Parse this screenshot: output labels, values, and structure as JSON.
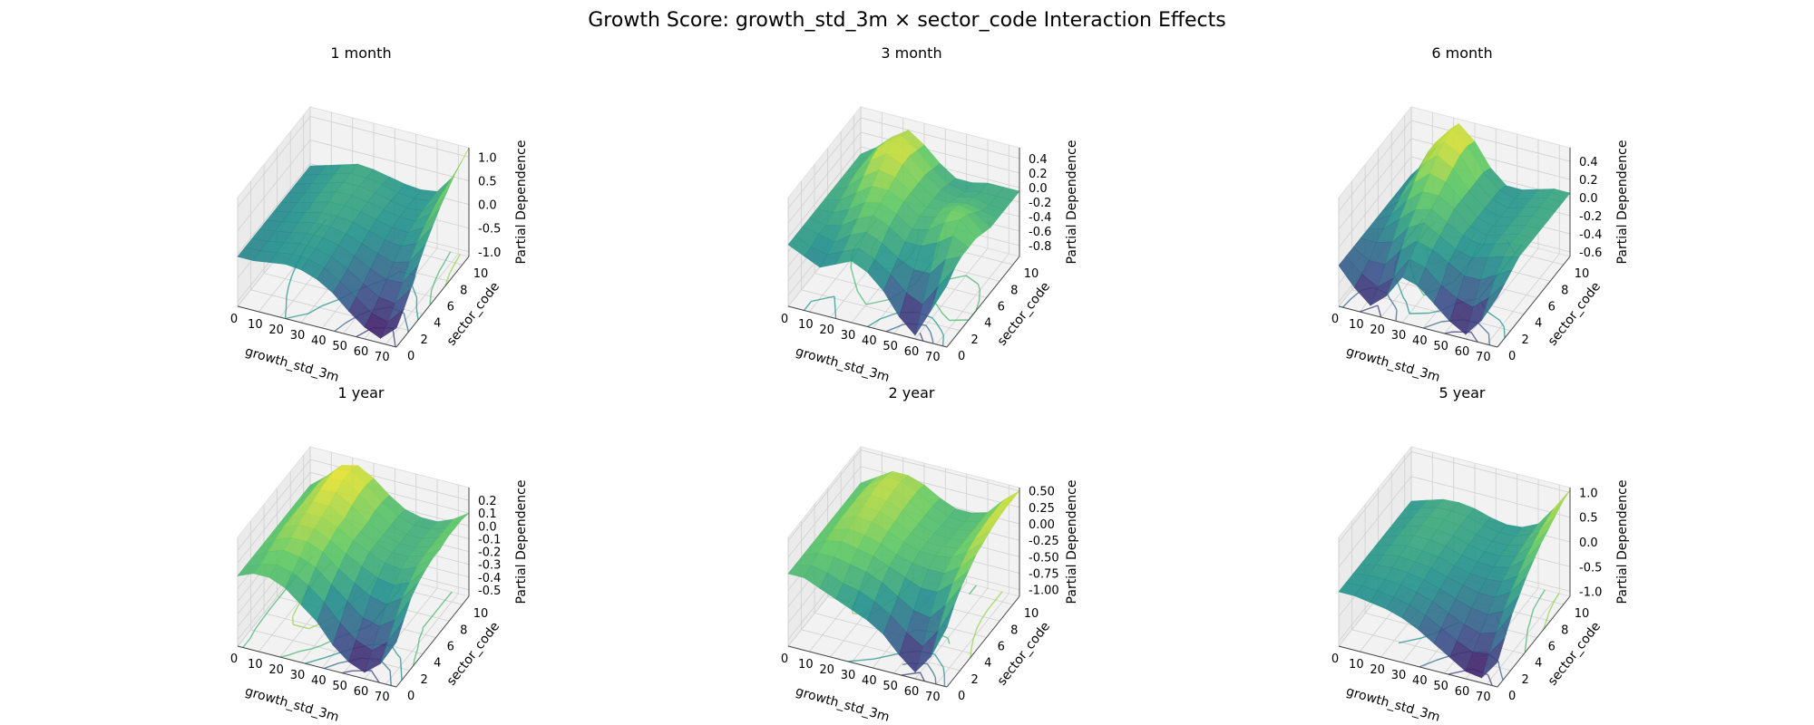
{
  "figure": {
    "title": "Growth Score: growth_std_3m × sector_code Interaction Effects"
  },
  "colors": {
    "colormap": "viridis",
    "pane": "#f2f2f2",
    "grid": "#d0d0d0",
    "text": "#000000"
  },
  "chart_data": [
    {
      "type": "surface3d",
      "title": "1 month",
      "xlabel": "growth_std_3m",
      "ylabel": "sector_code",
      "zlabel": "Partial Dependence",
      "xlim": [
        0,
        75
      ],
      "ylim": [
        0,
        11
      ],
      "zlim": [
        -1.1,
        1.2
      ],
      "xticks": [
        "0",
        "10",
        "20",
        "30",
        "40",
        "50",
        "60",
        "70"
      ],
      "yticks": [
        "0",
        "2",
        "4",
        "6",
        "8",
        "10"
      ],
      "zticks": [
        "-1.0",
        "-0.5",
        "0.0",
        "0.5",
        "1.0"
      ],
      "x": [
        0,
        7.5,
        15,
        22.5,
        30,
        37.5,
        45,
        52.5,
        60,
        67.5,
        75
      ],
      "y": [
        0,
        1.1,
        2.2,
        3.3,
        4.4,
        5.5,
        6.6,
        7.7,
        8.8,
        9.9,
        11
      ],
      "z": [
        [
          -0.05,
          -0.05,
          0.0,
          0.05,
          0.02,
          -0.1,
          -0.3,
          -0.6,
          -0.85,
          -1.0,
          -0.7
        ],
        [
          -0.05,
          -0.03,
          0.02,
          0.07,
          0.05,
          -0.05,
          -0.25,
          -0.5,
          -0.75,
          -0.85,
          -0.5
        ],
        [
          -0.05,
          -0.02,
          0.04,
          0.1,
          0.08,
          0.0,
          -0.18,
          -0.4,
          -0.6,
          -0.65,
          -0.25
        ],
        [
          -0.05,
          0.0,
          0.06,
          0.13,
          0.12,
          0.05,
          -0.1,
          -0.28,
          -0.42,
          -0.4,
          0.05
        ],
        [
          -0.05,
          0.01,
          0.08,
          0.16,
          0.16,
          0.1,
          -0.02,
          -0.15,
          -0.25,
          -0.15,
          0.3
        ],
        [
          -0.05,
          0.02,
          0.1,
          0.19,
          0.2,
          0.15,
          0.05,
          -0.05,
          -0.1,
          0.05,
          0.5
        ],
        [
          -0.05,
          0.03,
          0.12,
          0.22,
          0.23,
          0.18,
          0.1,
          0.02,
          0.0,
          0.2,
          0.7
        ],
        [
          -0.05,
          0.04,
          0.14,
          0.24,
          0.25,
          0.2,
          0.12,
          0.05,
          0.05,
          0.3,
          0.85
        ],
        [
          -0.05,
          0.05,
          0.15,
          0.25,
          0.25,
          0.2,
          0.12,
          0.05,
          0.08,
          0.4,
          1.0
        ],
        [
          -0.05,
          0.05,
          0.15,
          0.25,
          0.24,
          0.18,
          0.1,
          0.05,
          0.1,
          0.45,
          1.1
        ],
        [
          -0.05,
          0.05,
          0.15,
          0.25,
          0.22,
          0.15,
          0.08,
          0.05,
          0.1,
          0.5,
          1.2
        ]
      ]
    },
    {
      "type": "surface3d",
      "title": "3 month",
      "xlabel": "growth_std_3m",
      "ylabel": "sector_code",
      "zlabel": "Partial Dependence",
      "xlim": [
        0,
        75
      ],
      "ylim": [
        0,
        11
      ],
      "zlim": [
        -0.95,
        0.55
      ],
      "xticks": [
        "0",
        "10",
        "20",
        "30",
        "40",
        "50",
        "60",
        "70"
      ],
      "yticks": [
        "0",
        "2",
        "4",
        "6",
        "8",
        "10"
      ],
      "zticks": [
        "-0.8",
        "-0.6",
        "-0.4",
        "-0.2",
        "0.0",
        "0.2",
        "0.4"
      ],
      "x": [
        0,
        7.5,
        15,
        22.5,
        30,
        37.5,
        45,
        52.5,
        60,
        67.5,
        75
      ],
      "y": [
        0,
        1.1,
        2.2,
        3.3,
        4.4,
        5.5,
        6.6,
        7.7,
        8.8,
        9.9,
        11
      ],
      "z": [
        [
          -0.1,
          -0.2,
          -0.3,
          -0.2,
          -0.1,
          -0.2,
          -0.4,
          -0.7,
          -0.9,
          -0.5,
          -0.1
        ],
        [
          -0.1,
          -0.2,
          -0.25,
          -0.15,
          -0.05,
          -0.15,
          -0.3,
          -0.5,
          -0.6,
          -0.3,
          0.0
        ],
        [
          -0.1,
          -0.15,
          -0.2,
          -0.05,
          0.05,
          -0.05,
          -0.2,
          -0.3,
          -0.3,
          -0.05,
          0.05
        ],
        [
          -0.1,
          -0.15,
          -0.1,
          0.05,
          0.15,
          0.05,
          -0.1,
          -0.1,
          0.0,
          0.15,
          0.05
        ],
        [
          -0.1,
          -0.1,
          0.0,
          0.15,
          0.2,
          0.1,
          -0.05,
          0.0,
          0.15,
          0.25,
          0.05
        ],
        [
          -0.1,
          -0.05,
          0.1,
          0.25,
          0.25,
          0.15,
          0.0,
          0.05,
          0.2,
          0.2,
          0.0
        ],
        [
          -0.1,
          0.0,
          0.2,
          0.35,
          0.3,
          0.15,
          0.0,
          0.05,
          0.15,
          0.1,
          -0.05
        ],
        [
          -0.1,
          0.05,
          0.3,
          0.45,
          0.35,
          0.15,
          0.0,
          0.0,
          0.05,
          0.0,
          -0.05
        ],
        [
          -0.1,
          0.05,
          0.35,
          0.5,
          0.35,
          0.15,
          0.0,
          -0.05,
          0.0,
          -0.05,
          -0.05
        ],
        [
          -0.1,
          0.05,
          0.3,
          0.45,
          0.3,
          0.1,
          -0.05,
          -0.1,
          -0.05,
          -0.05,
          -0.05
        ],
        [
          -0.1,
          0.05,
          0.25,
          0.4,
          0.25,
          0.05,
          -0.1,
          -0.1,
          -0.05,
          -0.05,
          -0.05
        ]
      ]
    },
    {
      "type": "surface3d",
      "title": "6 month",
      "xlabel": "growth_std_3m",
      "ylabel": "sector_code",
      "zlabel": "Partial Dependence",
      "xlim": [
        0,
        75
      ],
      "ylim": [
        0,
        11
      ],
      "zlim": [
        -0.65,
        0.55
      ],
      "xticks": [
        "0",
        "10",
        "20",
        "30",
        "40",
        "50",
        "60",
        "70"
      ],
      "yticks": [
        "0",
        "2",
        "4",
        "6",
        "8",
        "10"
      ],
      "zticks": [
        "-0.6",
        "-0.4",
        "-0.2",
        "0.0",
        "0.2",
        "0.4"
      ],
      "x": [
        0,
        7.5,
        15,
        22.5,
        30,
        37.5,
        45,
        52.5,
        60,
        67.5,
        75
      ],
      "y": [
        0,
        1.1,
        2.2,
        3.3,
        4.4,
        5.5,
        6.6,
        7.7,
        8.8,
        9.9,
        11
      ],
      "z": [
        [
          -0.2,
          -0.4,
          -0.55,
          -0.4,
          -0.15,
          -0.2,
          -0.35,
          -0.5,
          -0.6,
          -0.4,
          -0.1
        ],
        [
          -0.2,
          -0.35,
          -0.45,
          -0.3,
          -0.05,
          -0.1,
          -0.25,
          -0.35,
          -0.4,
          -0.25,
          -0.05
        ],
        [
          -0.2,
          -0.3,
          -0.3,
          -0.1,
          0.05,
          0.0,
          -0.1,
          -0.2,
          -0.2,
          -0.1,
          0.0
        ],
        [
          -0.2,
          -0.2,
          -0.15,
          0.05,
          0.15,
          0.05,
          -0.05,
          -0.1,
          -0.05,
          0.0,
          0.05
        ],
        [
          -0.2,
          -0.15,
          0.0,
          0.15,
          0.2,
          0.1,
          0.0,
          -0.05,
          0.0,
          0.05,
          0.05
        ],
        [
          -0.2,
          -0.1,
          0.1,
          0.25,
          0.25,
          0.15,
          0.0,
          -0.05,
          0.0,
          0.05,
          0.05
        ],
        [
          -0.2,
          -0.05,
          0.2,
          0.35,
          0.3,
          0.15,
          0.0,
          -0.05,
          0.0,
          0.05,
          0.05
        ],
        [
          -0.2,
          0.0,
          0.3,
          0.45,
          0.35,
          0.15,
          0.0,
          -0.05,
          0.0,
          0.05,
          0.05
        ],
        [
          -0.2,
          0.0,
          0.35,
          0.5,
          0.4,
          0.15,
          0.0,
          -0.05,
          0.0,
          0.05,
          0.05
        ],
        [
          -0.2,
          0.0,
          0.35,
          0.55,
          0.4,
          0.15,
          0.0,
          -0.05,
          0.0,
          0.05,
          0.05
        ],
        [
          -0.2,
          0.0,
          0.3,
          0.5,
          0.35,
          0.1,
          -0.05,
          -0.05,
          0.0,
          0.05,
          0.05
        ]
      ]
    },
    {
      "type": "surface3d",
      "title": "1 year",
      "xlabel": "growth_std_3m",
      "ylabel": "sector_code",
      "zlabel": "Partial Dependence",
      "xlim": [
        0,
        75
      ],
      "ylim": [
        0,
        11
      ],
      "zlim": [
        -0.55,
        0.3
      ],
      "xticks": [
        "0",
        "10",
        "20",
        "30",
        "40",
        "50",
        "60",
        "70"
      ],
      "yticks": [
        "0",
        "2",
        "4",
        "6",
        "8",
        "10"
      ],
      "zticks": [
        "-0.5",
        "-0.4",
        "-0.3",
        "-0.2",
        "-0.1",
        "0.0",
        "0.1",
        "0.2"
      ],
      "x": [
        0,
        7.5,
        15,
        22.5,
        30,
        37.5,
        45,
        52.5,
        60,
        67.5,
        75
      ],
      "y": [
        0,
        1.1,
        2.2,
        3.3,
        4.4,
        5.5,
        6.6,
        7.7,
        8.8,
        9.9,
        11
      ],
      "z": [
        [
          0.0,
          0.05,
          0.05,
          0.0,
          -0.1,
          -0.2,
          -0.35,
          -0.45,
          -0.5,
          -0.4,
          -0.2
        ],
        [
          0.0,
          0.05,
          0.08,
          0.05,
          -0.02,
          -0.12,
          -0.25,
          -0.35,
          -0.4,
          -0.3,
          -0.1
        ],
        [
          0.0,
          0.08,
          0.12,
          0.1,
          0.05,
          -0.05,
          -0.15,
          -0.25,
          -0.28,
          -0.2,
          0.0
        ],
        [
          0.0,
          0.1,
          0.15,
          0.15,
          0.1,
          0.0,
          -0.08,
          -0.15,
          -0.18,
          -0.1,
          0.05
        ],
        [
          0.0,
          0.12,
          0.18,
          0.18,
          0.12,
          0.05,
          -0.02,
          -0.08,
          -0.1,
          -0.05,
          0.08
        ],
        [
          0.0,
          0.12,
          0.2,
          0.2,
          0.15,
          0.08,
          0.02,
          -0.03,
          -0.05,
          0.0,
          0.1
        ],
        [
          0.0,
          0.12,
          0.22,
          0.22,
          0.15,
          0.08,
          0.02,
          -0.02,
          -0.02,
          0.02,
          0.1
        ],
        [
          0.0,
          0.12,
          0.24,
          0.25,
          0.18,
          0.08,
          0.02,
          -0.02,
          -0.02,
          0.02,
          0.12
        ],
        [
          0.0,
          0.12,
          0.25,
          0.28,
          0.2,
          0.1,
          0.02,
          -0.02,
          -0.02,
          0.02,
          0.12
        ],
        [
          0.0,
          0.12,
          0.25,
          0.28,
          0.2,
          0.1,
          0.02,
          -0.02,
          -0.02,
          0.02,
          0.12
        ],
        [
          0.0,
          0.1,
          0.22,
          0.25,
          0.18,
          0.08,
          0.0,
          -0.03,
          -0.03,
          0.02,
          0.1
        ]
      ]
    },
    {
      "type": "surface3d",
      "title": "2 year",
      "xlabel": "growth_std_3m",
      "ylabel": "sector_code",
      "zlabel": "Partial Dependence",
      "xlim": [
        0,
        75
      ],
      "ylim": [
        0,
        11
      ],
      "zlim": [
        -1.1,
        0.55
      ],
      "xticks": [
        "0",
        "10",
        "20",
        "30",
        "40",
        "50",
        "60",
        "70"
      ],
      "yticks": [
        "0",
        "2",
        "4",
        "6",
        "8",
        "10"
      ],
      "zticks": [
        "-1.00",
        "-0.75",
        "-0.50",
        "-0.25",
        "0.00",
        "0.25",
        "0.50"
      ],
      "x": [
        0,
        7.5,
        15,
        22.5,
        30,
        37.5,
        45,
        52.5,
        60,
        67.5,
        75
      ],
      "y": [
        0,
        1.1,
        2.2,
        3.3,
        4.4,
        5.5,
        6.6,
        7.7,
        8.8,
        9.9,
        11
      ],
      "z": [
        [
          0.0,
          0.0,
          -0.1,
          -0.2,
          -0.3,
          -0.4,
          -0.55,
          -0.8,
          -1.0,
          -0.7,
          -0.2
        ],
        [
          0.0,
          0.05,
          0.0,
          -0.1,
          -0.15,
          -0.25,
          -0.4,
          -0.6,
          -0.75,
          -0.45,
          0.0
        ],
        [
          0.0,
          0.1,
          0.1,
          0.05,
          0.0,
          -0.1,
          -0.25,
          -0.4,
          -0.45,
          -0.2,
          0.15
        ],
        [
          0.0,
          0.15,
          0.2,
          0.15,
          0.1,
          0.0,
          -0.1,
          -0.2,
          -0.2,
          0.0,
          0.25
        ],
        [
          0.0,
          0.18,
          0.25,
          0.22,
          0.15,
          0.05,
          -0.02,
          -0.05,
          -0.05,
          0.1,
          0.35
        ],
        [
          0.0,
          0.2,
          0.3,
          0.28,
          0.2,
          0.1,
          0.02,
          0.02,
          0.05,
          0.2,
          0.4
        ],
        [
          0.0,
          0.2,
          0.32,
          0.3,
          0.22,
          0.1,
          0.02,
          0.02,
          0.05,
          0.25,
          0.45
        ],
        [
          0.0,
          0.2,
          0.35,
          0.33,
          0.24,
          0.1,
          0.02,
          0.0,
          0.05,
          0.28,
          0.48
        ],
        [
          0.0,
          0.2,
          0.38,
          0.35,
          0.25,
          0.1,
          0.0,
          0.0,
          0.05,
          0.3,
          0.5
        ],
        [
          0.0,
          0.18,
          0.35,
          0.35,
          0.25,
          0.1,
          0.0,
          -0.02,
          0.05,
          0.3,
          0.5
        ],
        [
          0.0,
          0.15,
          0.3,
          0.3,
          0.22,
          0.08,
          -0.02,
          -0.02,
          0.05,
          0.3,
          0.5
        ]
      ]
    },
    {
      "type": "surface3d",
      "title": "5 year",
      "xlabel": "growth_std_3m",
      "ylabel": "sector_code",
      "zlabel": "Partial Dependence",
      "xlim": [
        0,
        75
      ],
      "ylim": [
        0,
        11
      ],
      "zlim": [
        -1.1,
        1.1
      ],
      "xticks": [
        "0",
        "10",
        "20",
        "30",
        "40",
        "50",
        "60",
        "70"
      ],
      "yticks": [
        "0",
        "2",
        "4",
        "6",
        "8",
        "10"
      ],
      "zticks": [
        "-1.0",
        "-0.5",
        "0.0",
        "0.5",
        "1.0"
      ],
      "x": [
        0,
        7.5,
        15,
        22.5,
        30,
        37.5,
        45,
        52.5,
        60,
        67.5,
        75
      ],
      "y": [
        0,
        1.1,
        2.2,
        3.3,
        4.4,
        5.5,
        6.6,
        7.7,
        8.8,
        9.9,
        11
      ],
      "z": [
        [
          0.0,
          0.0,
          -0.05,
          -0.1,
          -0.2,
          -0.35,
          -0.55,
          -0.75,
          -0.95,
          -1.0,
          -0.6
        ],
        [
          0.0,
          0.02,
          0.0,
          -0.05,
          -0.12,
          -0.25,
          -0.42,
          -0.6,
          -0.75,
          -0.7,
          -0.3
        ],
        [
          0.0,
          0.05,
          0.05,
          0.02,
          -0.05,
          -0.15,
          -0.3,
          -0.45,
          -0.55,
          -0.45,
          0.0
        ],
        [
          0.0,
          0.08,
          0.1,
          0.08,
          0.02,
          -0.08,
          -0.2,
          -0.3,
          -0.35,
          -0.2,
          0.2
        ],
        [
          0.0,
          0.1,
          0.15,
          0.12,
          0.08,
          -0.02,
          -0.1,
          -0.18,
          -0.18,
          0.0,
          0.4
        ],
        [
          0.0,
          0.12,
          0.18,
          0.16,
          0.12,
          0.02,
          -0.05,
          -0.08,
          -0.05,
          0.15,
          0.55
        ],
        [
          0.0,
          0.12,
          0.2,
          0.2,
          0.15,
          0.05,
          0.0,
          -0.02,
          0.05,
          0.3,
          0.7
        ],
        [
          0.0,
          0.12,
          0.22,
          0.22,
          0.18,
          0.08,
          0.02,
          0.02,
          0.1,
          0.4,
          0.8
        ],
        [
          0.0,
          0.12,
          0.22,
          0.24,
          0.2,
          0.1,
          0.05,
          0.05,
          0.15,
          0.5,
          0.9
        ],
        [
          0.0,
          0.12,
          0.22,
          0.24,
          0.2,
          0.1,
          0.05,
          0.05,
          0.18,
          0.55,
          1.0
        ],
        [
          0.0,
          0.1,
          0.2,
          0.22,
          0.18,
          0.08,
          0.02,
          0.05,
          0.2,
          0.6,
          1.05
        ]
      ]
    }
  ]
}
